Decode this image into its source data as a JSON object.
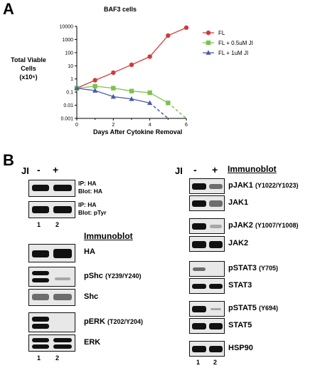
{
  "panel_a": {
    "letter": "A",
    "chart_data": {
      "type": "line",
      "title": "BAF3 cells",
      "ylabel_lines": [
        "Total Viable",
        "Cells",
        "(x10⁶)"
      ],
      "xlabel": "Days After Cytokine Removal",
      "y_scale": "log",
      "ylim": [
        0.001,
        10000
      ],
      "y_ticks": [
        "10000",
        "1000",
        "100",
        "10",
        "1",
        "0.1",
        "0.01",
        "0.001"
      ],
      "x_ticks": [
        "0",
        "2",
        "4",
        "6"
      ],
      "xlim": [
        0,
        6
      ],
      "legend_position": "top-right",
      "series": [
        {
          "name": "FL",
          "color": "#d23a3a",
          "marker": "circle",
          "x": [
            0,
            1,
            2,
            3,
            4,
            5,
            6
          ],
          "y": [
            0.2,
            0.8,
            3,
            12,
            50,
            2000,
            8000
          ],
          "dashed_tail": []
        },
        {
          "name": "FL + 0.5uM JI",
          "color": "#7cc24f",
          "marker": "square",
          "x": [
            0,
            1,
            2,
            3,
            4,
            5
          ],
          "y": [
            0.2,
            0.28,
            0.2,
            0.12,
            0.09,
            0.015
          ],
          "dashed_tail": [
            [
              5,
              0.015
            ],
            [
              6,
              0.001
            ]
          ]
        },
        {
          "name": "FL + 1uM JI",
          "color": "#4a5aa8",
          "marker": "triangle",
          "x": [
            0,
            1,
            2,
            3,
            4
          ],
          "y": [
            0.2,
            0.13,
            0.045,
            0.03,
            0.015
          ],
          "dashed_tail": [
            [
              4,
              0.015
            ],
            [
              5,
              0.001
            ]
          ]
        }
      ]
    }
  },
  "panel_b": {
    "letter": "B",
    "ji_label": "JI",
    "minus": "-",
    "plus": "+",
    "lane_1": "1",
    "lane_2": "2",
    "immunoblot": "Immunoblot",
    "ip_ha_blot_ha": [
      "IP: HA",
      "Blot: HA"
    ],
    "ip_ha_blot_ptyr": [
      "IP: HA",
      "Blot: pTyr"
    ],
    "left_blots": [
      {
        "name": "HA",
        "site": ""
      },
      {
        "name": "pShc",
        "site": "(Y239/Y240)"
      },
      {
        "name": "Shc",
        "site": ""
      },
      {
        "name": "pERK",
        "site": "(T202/Y204)"
      },
      {
        "name": "ERK",
        "site": ""
      }
    ],
    "right_blots": [
      {
        "name": "pJAK1",
        "site": "(Y1022/Y1023)"
      },
      {
        "name": "JAK1",
        "site": ""
      },
      {
        "name": "pJAK2",
        "site": "(Y1007/Y1008)"
      },
      {
        "name": "JAK2",
        "site": ""
      },
      {
        "name": "pSTAT3",
        "site": "(Y705)"
      },
      {
        "name": "STAT3",
        "site": ""
      },
      {
        "name": "pSTAT5",
        "site": "(Y694)"
      },
      {
        "name": "STAT5",
        "site": ""
      },
      {
        "name": "HSP90",
        "site": ""
      }
    ]
  }
}
